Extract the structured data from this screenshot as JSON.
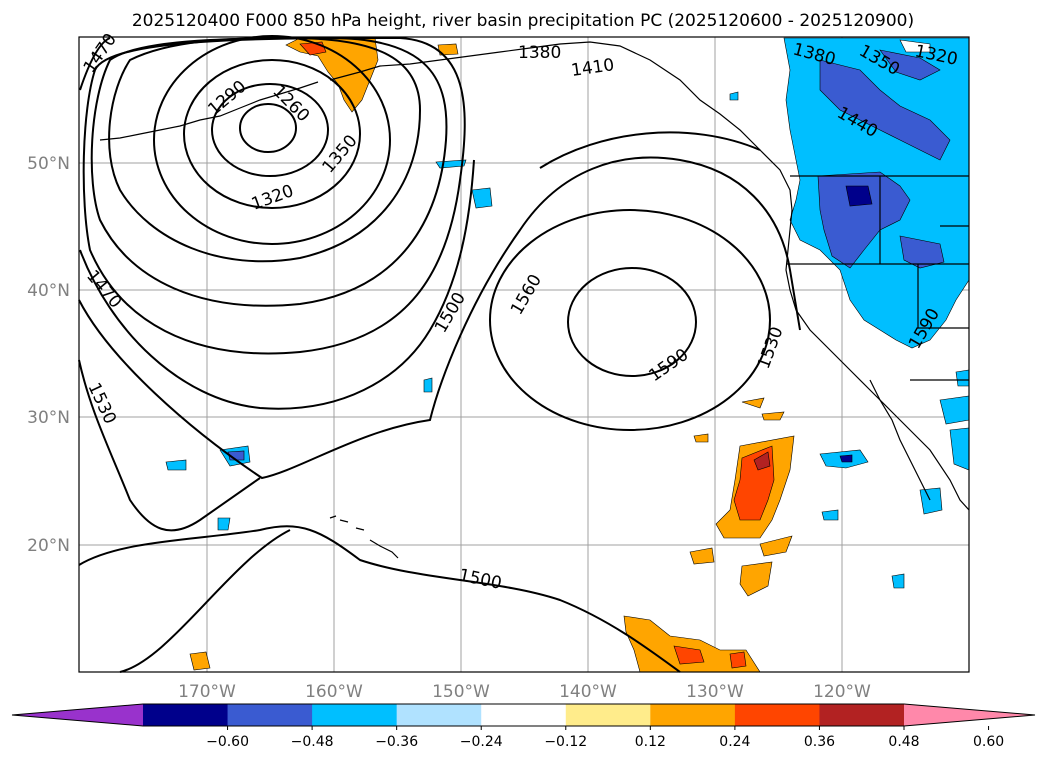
{
  "title": "2025120400 F000 850 hPa height, river basin precipitation PC (2025120600 - 2025120900)",
  "map": {
    "lon_ticks": [
      "170°W",
      "160°W",
      "150°W",
      "140°W",
      "130°W",
      "120°W"
    ],
    "lat_ticks": [
      "50°N",
      "40°N",
      "30°N",
      "20°N"
    ],
    "grid": true
  },
  "contours": {
    "field": "850 hPa height",
    "labels": [
      "1470",
      "1290",
      "1260",
      "1350",
      "1320",
      "1380",
      "1410",
      "1380",
      "1350",
      "1320",
      "1440",
      "1470",
      "1500",
      "1560",
      "1590",
      "1530",
      "1530",
      "1500",
      "1590"
    ]
  },
  "colorbar": {
    "ticks": [
      "−0.60",
      "−0.48",
      "−0.36",
      "−0.24",
      "−0.12",
      "0.12",
      "0.24",
      "0.36",
      "0.48",
      "0.60"
    ],
    "colors": [
      "#9932cc",
      "#00008b",
      "#3a5bd1",
      "#00bfff",
      "#b0e2ff",
      "#ffffff",
      "#ffec8b",
      "#ffa500",
      "#ff4500",
      "#b22222",
      "#ff88aa"
    ],
    "extend": "both"
  },
  "colors": {
    "contour": "#000000",
    "grid": "#a0a0a0",
    "coast": "#000000",
    "positive_pc": "#ffa500",
    "negative_pc": "#00bfff"
  }
}
